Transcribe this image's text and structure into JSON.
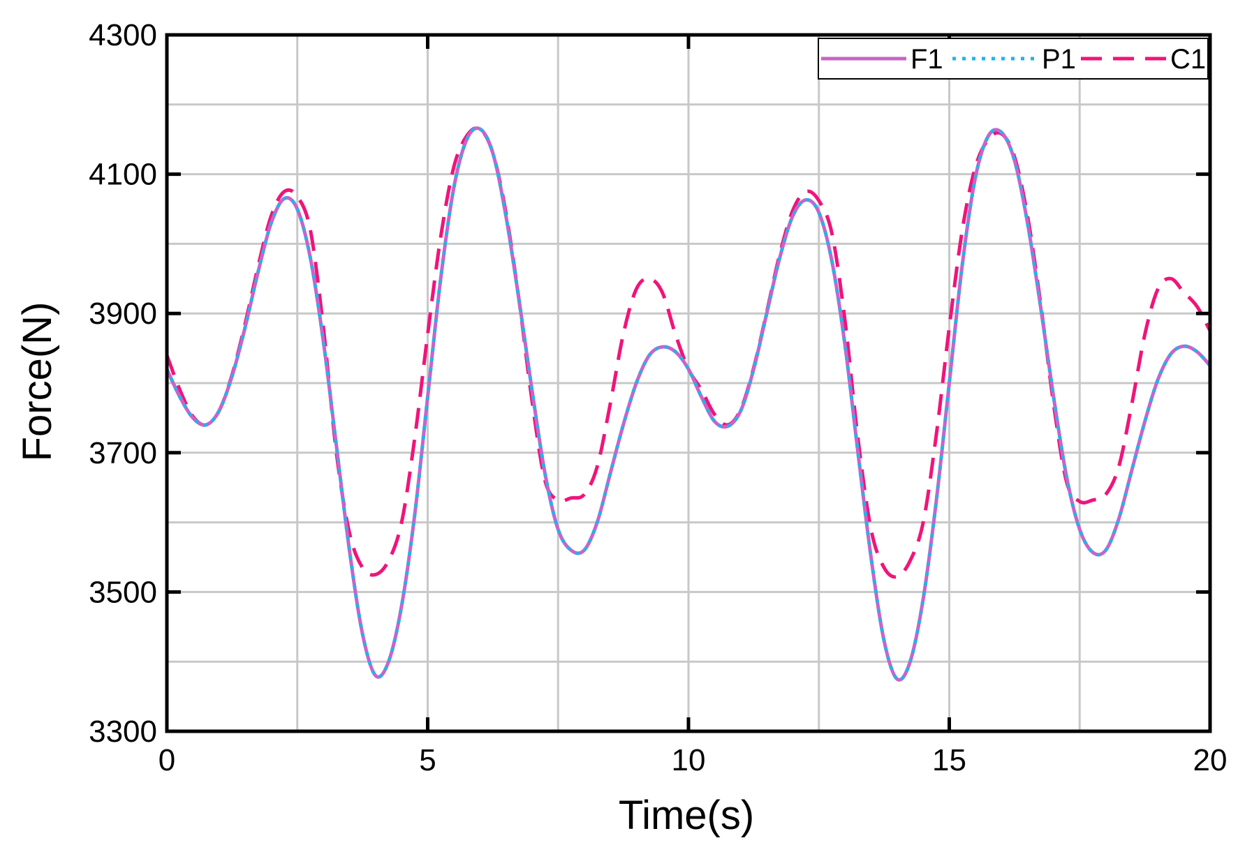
{
  "chart_data": {
    "type": "line",
    "xlabel": "Time(s)",
    "ylabel": "Force(N)",
    "xlim": [
      0,
      20
    ],
    "ylim": [
      3300,
      4300
    ],
    "xticks": [
      0,
      5,
      10,
      15,
      20
    ],
    "yticks": [
      3300,
      3500,
      3700,
      3900,
      4100,
      4300
    ],
    "grid": true,
    "legend_position": "top-right",
    "x": [
      0,
      0.25,
      0.5,
      0.75,
      1,
      1.25,
      1.5,
      1.75,
      2,
      2.25,
      2.5,
      2.75,
      3,
      3.25,
      3.5,
      3.75,
      4,
      4.25,
      4.5,
      4.75,
      5,
      5.25,
      5.5,
      5.75,
      6,
      6.25,
      6.5,
      6.75,
      7,
      7.25,
      7.5,
      7.75,
      8,
      8.25,
      8.5,
      8.75,
      9,
      9.25,
      9.5,
      9.75,
      10,
      10.25,
      10.5,
      10.75,
      11,
      11.25,
      11.5,
      11.75,
      12,
      12.25,
      12.5,
      12.75,
      13,
      13.25,
      13.5,
      13.75,
      14,
      14.25,
      14.5,
      14.75,
      15,
      15.25,
      15.5,
      15.75,
      16,
      16.25,
      16.5,
      16.75,
      17,
      17.25,
      17.5,
      17.75,
      18,
      18.25,
      18.5,
      18.75,
      19,
      19.25,
      19.5,
      19.75,
      20
    ],
    "series": [
      {
        "name": "F1",
        "color": "#c864c8",
        "dash": "solid",
        "values": [
          3820,
          3780,
          3750,
          3740,
          3760,
          3810,
          3880,
          3960,
          4030,
          4065,
          4050,
          3980,
          3860,
          3710,
          3560,
          3440,
          3380,
          3400,
          3480,
          3610,
          3780,
          3950,
          4080,
          4150,
          4165,
          4130,
          4040,
          3920,
          3790,
          3670,
          3590,
          3560,
          3560,
          3600,
          3670,
          3740,
          3800,
          3840,
          3852,
          3845,
          3820,
          3780,
          3745,
          3738,
          3760,
          3820,
          3900,
          3980,
          4040,
          4063,
          4045,
          3975,
          3855,
          3700,
          3550,
          3430,
          3375,
          3400,
          3490,
          3630,
          3800,
          3970,
          4095,
          4155,
          4160,
          4120,
          4030,
          3910,
          3780,
          3665,
          3590,
          3557,
          3560,
          3605,
          3675,
          3745,
          3805,
          3842,
          3853,
          3845,
          3825
        ]
      },
      {
        "name": "P1",
        "color": "#1eb4f0",
        "dash": "dot",
        "values": [
          3820,
          3780,
          3750,
          3740,
          3760,
          3810,
          3880,
          3960,
          4030,
          4065,
          4050,
          3980,
          3860,
          3710,
          3560,
          3440,
          3380,
          3400,
          3480,
          3610,
          3780,
          3950,
          4080,
          4150,
          4165,
          4130,
          4040,
          3920,
          3790,
          3670,
          3590,
          3560,
          3560,
          3600,
          3670,
          3740,
          3800,
          3840,
          3852,
          3845,
          3820,
          3780,
          3745,
          3738,
          3760,
          3820,
          3900,
          3980,
          4040,
          4063,
          4045,
          3975,
          3855,
          3700,
          3550,
          3430,
          3375,
          3400,
          3490,
          3630,
          3800,
          3970,
          4095,
          4155,
          4160,
          4120,
          4030,
          3910,
          3780,
          3665,
          3590,
          3557,
          3560,
          3605,
          3675,
          3745,
          3805,
          3842,
          3853,
          3845,
          3825
        ]
      },
      {
        "name": "C1",
        "color": "#f0147a",
        "dash": "dash",
        "values": [
          3840,
          3790,
          3752,
          3740,
          3760,
          3812,
          3885,
          3968,
          4040,
          4075,
          4068,
          4020,
          3880,
          3700,
          3585,
          3535,
          3525,
          3545,
          3600,
          3720,
          3870,
          4010,
          4110,
          4155,
          4165,
          4130,
          4045,
          3920,
          3775,
          3660,
          3632,
          3635,
          3640,
          3680,
          3770,
          3870,
          3935,
          3950,
          3930,
          3870,
          3820,
          3790,
          3755,
          3740,
          3762,
          3822,
          3902,
          3985,
          4048,
          4075,
          4062,
          4015,
          3890,
          3720,
          3590,
          3535,
          3522,
          3545,
          3600,
          3725,
          3880,
          4020,
          4110,
          4150,
          4158,
          4125,
          4040,
          3915,
          3770,
          3658,
          3630,
          3632,
          3640,
          3680,
          3770,
          3870,
          3935,
          3950,
          3930,
          3910,
          3875
        ]
      }
    ]
  }
}
